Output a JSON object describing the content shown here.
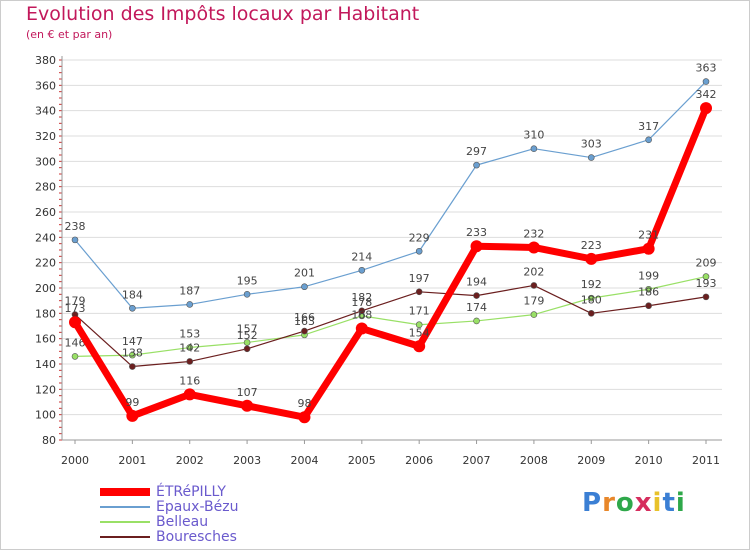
{
  "header": {
    "title": "Evolution des Impôts locaux par Habitant",
    "subtitle": "(en € et par an)"
  },
  "logo": {
    "text": "Proxiti",
    "colors": [
      "#3b7fd4",
      "#e8872a",
      "#2ea84a",
      "#d62e5e",
      "#e8c22a",
      "#3b7fd4",
      "#2ea84a"
    ]
  },
  "chart_data": {
    "type": "line",
    "title": "Evolution des Impôts locaux par Habitant",
    "ylabel": "(en € et par an)",
    "xlabel": "",
    "ylim": [
      80,
      380
    ],
    "yticks": [
      80,
      100,
      120,
      140,
      160,
      180,
      200,
      220,
      240,
      260,
      280,
      300,
      320,
      340,
      360,
      380
    ],
    "grid": true,
    "legend_position": "bottom-left",
    "categories": [
      "2000",
      "2001",
      "2002",
      "2003",
      "2004",
      "2005",
      "2006",
      "2007",
      "2008",
      "2009",
      "2010",
      "2011"
    ],
    "series": [
      {
        "name": "ÉTRéPILLY",
        "color": "#ff0000",
        "values": [
          173,
          99,
          116,
          107,
          98,
          168,
          154,
          233,
          232,
          223,
          231,
          342
        ],
        "labels": [
          "173",
          "99",
          "116",
          "107",
          "98",
          "168",
          "154",
          "233",
          "232",
          "223",
          "231",
          "342"
        ]
      },
      {
        "name": "Epaux-Bézu",
        "color": "#6a9fd0",
        "values": [
          238,
          184,
          187,
          195,
          201,
          214,
          229,
          297,
          310,
          303,
          317,
          363
        ],
        "labels": [
          "238",
          "184",
          "187",
          "195",
          "201",
          "214",
          "229",
          "297",
          "310",
          "303",
          "317",
          "363"
        ]
      },
      {
        "name": "Belleau",
        "color": "#99e066",
        "values": [
          146,
          147,
          153,
          157,
          163,
          178,
          171,
          174,
          179,
          192,
          199,
          209
        ],
        "labels": [
          "146",
          "147",
          "153",
          "157",
          "163",
          "178",
          "171",
          "174",
          "179",
          "192",
          "199",
          "209"
        ]
      },
      {
        "name": "Bouresches",
        "color": "#6b1f1f",
        "values": [
          179,
          138,
          142,
          152,
          166,
          182,
          197,
          194,
          202,
          180,
          186,
          193
        ],
        "labels": [
          "179",
          "138",
          "142",
          "152",
          "166",
          "182",
          "197",
          "194",
          "202",
          "180",
          "186",
          "193"
        ]
      }
    ]
  }
}
